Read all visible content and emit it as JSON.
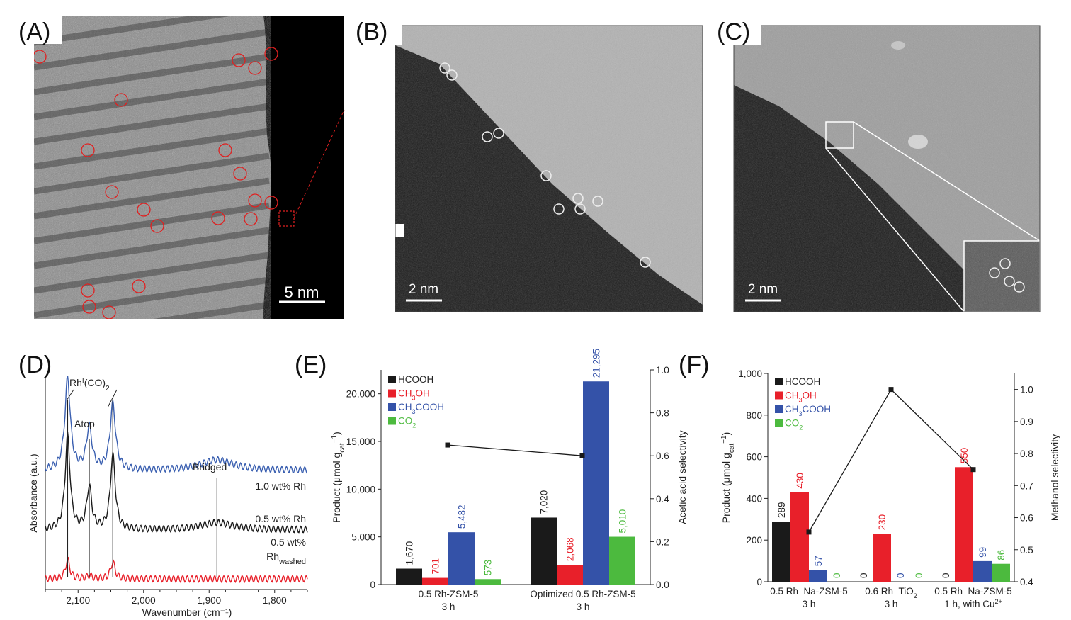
{
  "panels": {
    "A": {
      "label": "(A)",
      "scale": "5 nm"
    },
    "B": {
      "label": "(B)",
      "scale": "2 nm"
    },
    "C": {
      "label": "(C)",
      "scale": "2 nm"
    },
    "D": {
      "label": "(D)"
    },
    "E": {
      "label": "(E)"
    },
    "F": {
      "label": "(F)"
    }
  },
  "colors": {
    "HCOOH": "#1a1a1a",
    "CH3OH": "#e8202a",
    "CH3COOH": "#3452a8",
    "CO2": "#4cba3e",
    "spectrum_blue": "#3a5fb0"
  },
  "chart_data": [
    {
      "panel": "D",
      "type": "line",
      "xlabel": "Wavenumber (cm⁻¹)",
      "ylabel": "Absorbance (a.u.)",
      "xlim": [
        2150,
        1750
      ],
      "x_ticks": [
        "2,100",
        "2,000",
        "1,900",
        "1,800"
      ],
      "annotations": {
        "rh_co2": "Rh",
        "rh_sup": "I",
        "rh_rest": "(CO)",
        "rh_sub": "2",
        "atop": "Atop",
        "bridged": "Bridged"
      },
      "peak_positions": [
        2116,
        2083,
        2047,
        1888
      ],
      "series": [
        {
          "name": "1.0 wt% Rh",
          "offset": 0.56,
          "peaks": [
            [
              2116,
              0.43,
              5
            ],
            [
              2083,
              0.2,
              5
            ],
            [
              2047,
              0.31,
              5
            ],
            [
              1888,
              0.05,
              30
            ]
          ]
        },
        {
          "name": "0.5 wt% Rh",
          "offset": 0.28,
          "peaks": [
            [
              2116,
              0.44,
              4.5
            ],
            [
              2083,
              0.2,
              4.5
            ],
            [
              2047,
              0.35,
              4.5
            ],
            [
              1888,
              0.035,
              30
            ]
          ]
        },
        {
          "name": "0.5 wt%",
          "name_line2": "Rh",
          "name_sub": "washed",
          "offset": 0.05,
          "peaks": [
            [
              2116,
              0.09,
              4
            ],
            [
              2083,
              0.015,
              5
            ],
            [
              2047,
              0.08,
              4
            ]
          ]
        }
      ]
    },
    {
      "panel": "E",
      "type": "bar",
      "ylabel": "Product (μmol g",
      "ylabel_sub": "cat",
      "ylabel_sup": "−1",
      "ylabel_end": ")",
      "y2label": "Acetic acid selectivity",
      "ylim": [
        0,
        22500
      ],
      "y_ticks": [
        "0",
        "5,000",
        "10,000",
        "15,000",
        "20,000"
      ],
      "y2lim": [
        0,
        1.0
      ],
      "y2_ticks": [
        "0.0",
        "0.2",
        "0.4",
        "0.6",
        "0.8",
        "1.0"
      ],
      "legend": [
        "HCOOH",
        "CH3OH",
        "CH3COOH",
        "CO2"
      ],
      "groups": [
        {
          "line1": "0.5 Rh-ZSM-5",
          "line2": "3 h",
          "values": [
            1670,
            701,
            5482,
            573
          ],
          "labels": [
            "1,670",
            "701",
            "5,482",
            "573"
          ],
          "selectivity": 0.65
        },
        {
          "line1": "Optimized 0.5 Rh-ZSM-5",
          "line2": "3 h",
          "values": [
            7020,
            2068,
            21295,
            5010
          ],
          "labels": [
            "7,020",
            "2,068",
            "21,295",
            "5,010"
          ],
          "selectivity": 0.6
        }
      ]
    },
    {
      "panel": "F",
      "type": "bar",
      "ylabel": "Product (μmol g",
      "ylabel_sub": "cat",
      "ylabel_sup": "−1",
      "ylabel_end": ")",
      "y2label": "Methanol selectivity",
      "ylim": [
        0,
        1000
      ],
      "y_ticks": [
        "0",
        "200",
        "400",
        "600",
        "800",
        "1,000"
      ],
      "y2lim": [
        0.4,
        1.05
      ],
      "y2_ticks": [
        "0.4",
        "0.5",
        "0.6",
        "0.7",
        "0.8",
        "0.9",
        "1.0"
      ],
      "legend": [
        "HCOOH",
        "CH3OH",
        "CH3COOH",
        "CO2"
      ],
      "groups": [
        {
          "line1": "0.5 Rh–Na-ZSM-5",
          "line2": "3 h",
          "values": [
            289,
            430,
            57,
            0
          ],
          "labels": [
            "289",
            "430",
            "57",
            "0"
          ],
          "selectivity": 0.555
        },
        {
          "line1": "0.6 Rh–TiO",
          "line1_sub": "2",
          "line2": "3 h",
          "values": [
            0,
            230,
            0,
            0
          ],
          "labels": [
            "0",
            "230",
            "0",
            "0"
          ],
          "selectivity": 1.0
        },
        {
          "line1": "0.5 Rh–Na-ZSM-5",
          "line2": "1 h, with Cu",
          "line2_sup": "2+",
          "values": [
            0,
            550,
            99,
            86
          ],
          "labels": [
            "0",
            "550",
            "99",
            "86"
          ],
          "selectivity": 0.75
        }
      ]
    }
  ]
}
